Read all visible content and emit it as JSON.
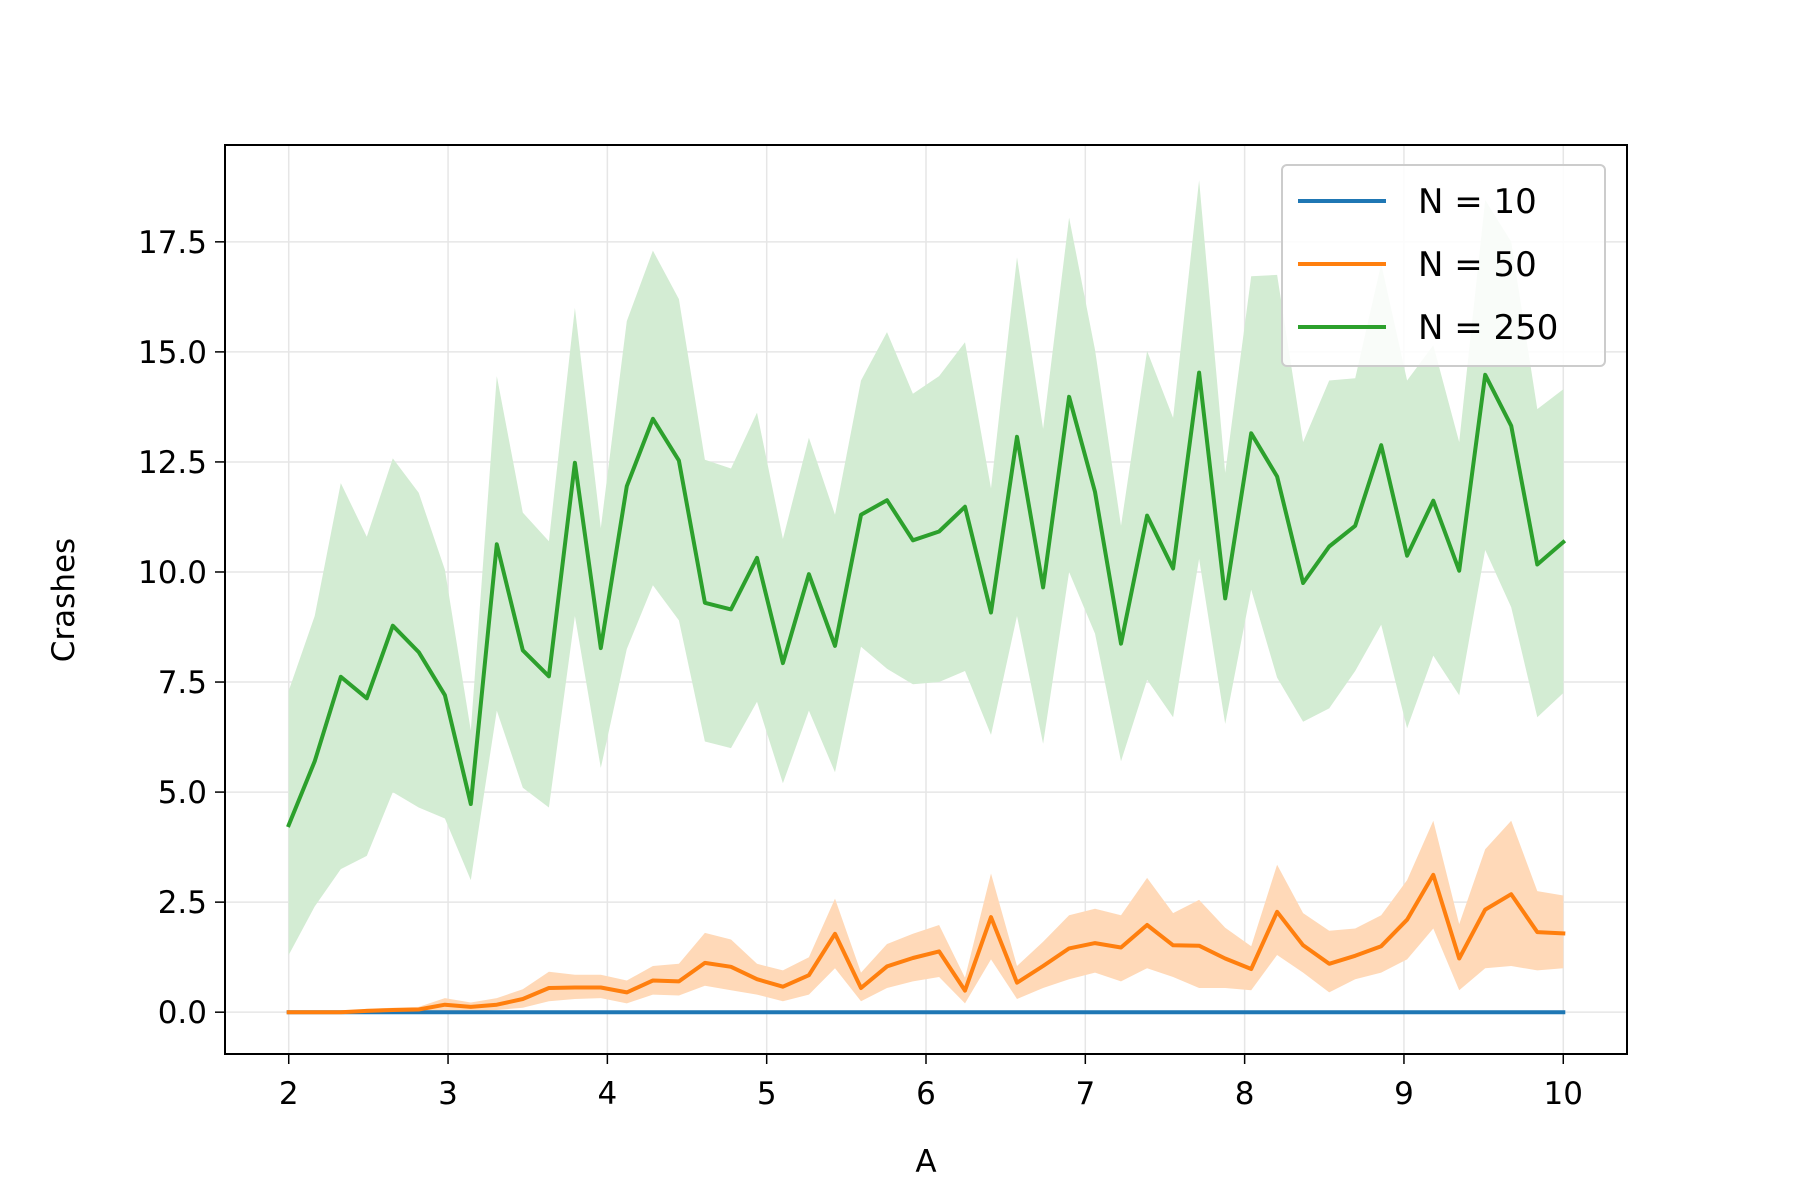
{
  "chart_data": {
    "type": "line",
    "title": "",
    "xlabel": "A",
    "ylabel": "Crashes",
    "xlim": [
      1.6,
      10.4
    ],
    "ylim": [
      -0.95,
      19.7
    ],
    "x_ticks": [
      2,
      3,
      4,
      5,
      6,
      7,
      8,
      9,
      10
    ],
    "y_ticks": [
      0.0,
      2.5,
      5.0,
      7.5,
      10.0,
      12.5,
      15.0,
      17.5
    ],
    "y_tick_labels": [
      "0.0",
      "2.5",
      "5.0",
      "7.5",
      "10.0",
      "12.5",
      "15.0",
      "17.5"
    ],
    "grid": true,
    "legend_position": "top-right",
    "x": [
      2.0,
      2.163,
      2.327,
      2.49,
      2.653,
      2.816,
      2.98,
      3.143,
      3.306,
      3.469,
      3.633,
      3.796,
      3.959,
      4.122,
      4.286,
      4.449,
      4.612,
      4.776,
      4.939,
      5.102,
      5.265,
      5.429,
      5.592,
      5.755,
      5.918,
      6.082,
      6.245,
      6.408,
      6.571,
      6.735,
      6.898,
      7.061,
      7.224,
      7.388,
      7.551,
      7.714,
      7.878,
      8.041,
      8.204,
      8.367,
      8.531,
      8.694,
      8.857,
      9.02,
      9.184,
      9.347,
      9.51,
      9.673,
      9.837,
      10.0
    ],
    "series": [
      {
        "name": "N = 10",
        "color": "#1f77b4",
        "values": [
          0,
          0,
          0,
          0,
          0,
          0,
          0,
          0,
          0,
          0,
          0,
          0,
          0,
          0,
          0,
          0,
          0,
          0,
          0,
          0,
          0,
          0,
          0,
          0,
          0,
          0,
          0,
          0,
          0,
          0,
          0,
          0,
          0,
          0,
          0,
          0,
          0,
          0,
          0,
          0,
          0,
          0,
          0,
          0,
          0,
          0,
          0,
          0,
          0,
          0
        ],
        "lower": [
          0,
          0,
          0,
          0,
          0,
          0,
          0,
          0,
          0,
          0,
          0,
          0,
          0,
          0,
          0,
          0,
          0,
          0,
          0,
          0,
          0,
          0,
          0,
          0,
          0,
          0,
          0,
          0,
          0,
          0,
          0,
          0,
          0,
          0,
          0,
          0,
          0,
          0,
          0,
          0,
          0,
          0,
          0,
          0,
          0,
          0,
          0,
          0,
          0,
          0
        ],
        "upper": [
          0,
          0,
          0,
          0,
          0,
          0,
          0,
          0,
          0,
          0,
          0,
          0,
          0,
          0,
          0,
          0,
          0,
          0,
          0,
          0,
          0,
          0,
          0,
          0,
          0,
          0,
          0,
          0,
          0,
          0,
          0,
          0,
          0,
          0,
          0,
          0,
          0,
          0,
          0,
          0,
          0,
          0,
          0,
          0,
          0,
          0,
          0,
          0,
          0,
          0
        ]
      },
      {
        "name": "N = 50",
        "color": "#ff7f0e",
        "fill_color": "#ffd9b8",
        "values": [
          0.0,
          0.0,
          0.0,
          0.03,
          0.05,
          0.06,
          0.17,
          0.12,
          0.17,
          0.3,
          0.55,
          0.56,
          0.56,
          0.45,
          0.72,
          0.7,
          1.12,
          1.03,
          0.75,
          0.58,
          0.84,
          1.78,
          0.55,
          1.04,
          1.23,
          1.38,
          0.49,
          2.16,
          0.67,
          1.05,
          1.45,
          1.57,
          1.47,
          1.98,
          1.52,
          1.51,
          1.22,
          0.98,
          2.28,
          1.52,
          1.1,
          1.28,
          1.5,
          2.1,
          3.12,
          1.22,
          2.33,
          2.68,
          1.82,
          1.79
        ],
        "lower": [
          0.0,
          0.0,
          0.0,
          0.0,
          0.0,
          0.0,
          0.03,
          0.02,
          0.05,
          0.1,
          0.25,
          0.3,
          0.32,
          0.2,
          0.4,
          0.38,
          0.6,
          0.5,
          0.4,
          0.25,
          0.4,
          1.0,
          0.25,
          0.55,
          0.7,
          0.8,
          0.2,
          1.2,
          0.3,
          0.55,
          0.75,
          0.9,
          0.7,
          1.0,
          0.8,
          0.55,
          0.55,
          0.5,
          1.3,
          0.9,
          0.45,
          0.75,
          0.9,
          1.2,
          1.9,
          0.5,
          1.0,
          1.05,
          0.95,
          1.0
        ],
        "upper": [
          0.0,
          0.0,
          0.0,
          0.08,
          0.1,
          0.12,
          0.32,
          0.22,
          0.32,
          0.52,
          0.92,
          0.85,
          0.85,
          0.72,
          1.05,
          1.1,
          1.8,
          1.65,
          1.1,
          0.95,
          1.25,
          2.58,
          0.9,
          1.55,
          1.78,
          1.98,
          0.78,
          3.15,
          1.05,
          1.6,
          2.2,
          2.35,
          2.2,
          3.05,
          2.25,
          2.55,
          1.92,
          1.5,
          3.35,
          2.25,
          1.85,
          1.9,
          2.2,
          3.0,
          4.35,
          2.0,
          3.7,
          4.35,
          2.75,
          2.65
        ]
      },
      {
        "name": "N = 250",
        "color": "#2ca02c",
        "fill_color": "#d3ecd3",
        "values": [
          4.25,
          5.7,
          7.62,
          7.13,
          8.78,
          8.18,
          7.2,
          4.73,
          10.63,
          8.22,
          7.63,
          12.48,
          8.27,
          11.95,
          13.48,
          12.53,
          9.3,
          9.15,
          10.32,
          7.93,
          9.95,
          8.32,
          11.3,
          11.63,
          10.72,
          10.92,
          11.48,
          9.08,
          13.07,
          9.65,
          13.98,
          11.82,
          8.37,
          11.28,
          10.08,
          14.53,
          9.4,
          13.15,
          12.17,
          9.75,
          10.58,
          11.05,
          12.88,
          10.37,
          11.62,
          10.03,
          14.48,
          13.32,
          10.17,
          10.68
        ],
        "lower": [
          1.3,
          2.4,
          3.25,
          3.55,
          5.0,
          4.65,
          4.4,
          3.0,
          6.85,
          5.1,
          4.65,
          9.0,
          5.55,
          8.25,
          9.7,
          8.9,
          6.15,
          6.0,
          7.05,
          5.2,
          6.85,
          5.45,
          8.3,
          7.8,
          7.45,
          7.5,
          7.75,
          6.3,
          9.0,
          6.1,
          10.0,
          8.6,
          5.7,
          7.55,
          6.7,
          10.3,
          6.55,
          9.6,
          7.6,
          6.6,
          6.9,
          7.75,
          8.8,
          6.45,
          8.1,
          7.2,
          10.5,
          9.2,
          6.7,
          7.25
        ],
        "upper": [
          7.3,
          9.0,
          12.02,
          10.8,
          12.58,
          11.8,
          10.05,
          6.4,
          14.45,
          11.35,
          10.7,
          16.0,
          11.0,
          15.7,
          17.3,
          16.2,
          12.55,
          12.35,
          13.62,
          10.75,
          13.05,
          11.3,
          14.35,
          15.45,
          14.05,
          14.45,
          15.22,
          11.9,
          17.15,
          13.25,
          18.05,
          15.05,
          11.05,
          15.02,
          13.5,
          18.9,
          12.25,
          16.72,
          16.75,
          12.95,
          14.35,
          14.4,
          17.0,
          14.35,
          15.15,
          12.95,
          18.45,
          17.5,
          13.7,
          14.15
        ]
      }
    ]
  }
}
